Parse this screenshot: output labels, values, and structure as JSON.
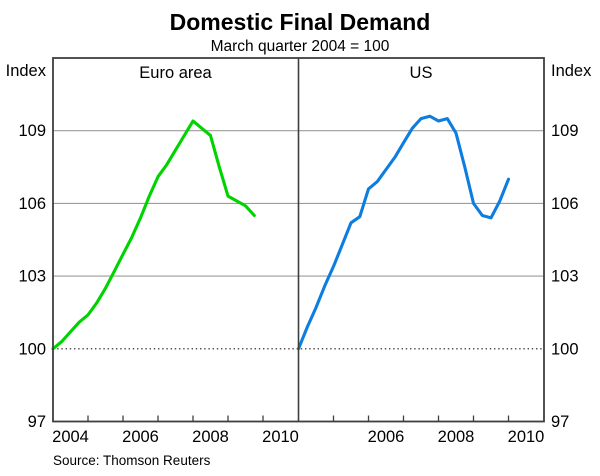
{
  "header": {
    "title": "Domestic Final Demand",
    "subtitle": "March quarter 2004 = 100"
  },
  "axes": {
    "y_unit_left": "Index",
    "y_unit_right": "Index",
    "y_tick_labels": [
      109,
      106,
      103,
      100,
      97
    ],
    "y_min": 97,
    "y_max": 112,
    "baseline_value": 100,
    "x_year_start": 2004,
    "x_year_end": 2011,
    "x_tick_years": [
      2005,
      2006,
      2007,
      2008,
      2009,
      2010
    ],
    "x_labels_left_panel": [
      "2004",
      "2006",
      "2008",
      "2010"
    ],
    "x_labels_right_panel": [
      "2006",
      "2008",
      "2010"
    ]
  },
  "source": "Source: Thomson Reuters",
  "colors": {
    "euro_line": "#00d400",
    "us_line": "#0e7de0",
    "gridline": "#9c9c9c",
    "axis": "#3f3f3f",
    "baseline_dotted": "#1a1a1a",
    "background": "#ffffff"
  },
  "chart_data": {
    "type": "line",
    "title": "Domestic Final Demand",
    "subtitle": "March quarter 2004 = 100",
    "index_base": "March quarter 2004 = 100",
    "ylim": [
      97,
      112
    ],
    "yticks": [
      97,
      100,
      103,
      106,
      109
    ],
    "grid": true,
    "legend_position": "panel-header",
    "panels": [
      {
        "label": "Euro area",
        "color": "#00d400",
        "frequency": "quarterly",
        "start": "2004Q1",
        "end": "2009Q4",
        "x": [
          2004.0,
          2004.25,
          2004.5,
          2004.75,
          2005.0,
          2005.25,
          2005.5,
          2005.75,
          2006.0,
          2006.25,
          2006.5,
          2006.75,
          2007.0,
          2007.25,
          2007.5,
          2007.75,
          2008.0,
          2008.25,
          2008.5,
          2008.75,
          2009.0,
          2009.25,
          2009.5,
          2009.75
        ],
        "values": [
          100.0,
          100.3,
          100.7,
          101.1,
          101.4,
          101.9,
          102.5,
          103.2,
          103.9,
          104.6,
          105.4,
          106.3,
          107.1,
          107.6,
          108.2,
          108.8,
          109.4,
          109.1,
          108.8,
          107.5,
          106.3,
          106.1,
          105.9,
          105.5
        ]
      },
      {
        "label": "US",
        "color": "#0e7de0",
        "frequency": "quarterly",
        "start": "2004Q1",
        "end": "2010Q1",
        "x": [
          2004.0,
          2004.25,
          2004.5,
          2004.75,
          2005.0,
          2005.25,
          2005.5,
          2005.75,
          2006.0,
          2006.25,
          2006.5,
          2006.75,
          2007.0,
          2007.25,
          2007.5,
          2007.75,
          2008.0,
          2008.25,
          2008.5,
          2008.75,
          2009.0,
          2009.25,
          2009.5,
          2009.75,
          2010.0
        ],
        "values": [
          100.0,
          100.9,
          101.7,
          102.6,
          103.4,
          104.3,
          105.2,
          105.45,
          106.6,
          106.9,
          107.4,
          107.9,
          108.5,
          109.1,
          109.5,
          109.6,
          109.4,
          109.5,
          108.9,
          107.5,
          106.0,
          105.5,
          105.4,
          106.1,
          107.0
        ]
      }
    ]
  }
}
